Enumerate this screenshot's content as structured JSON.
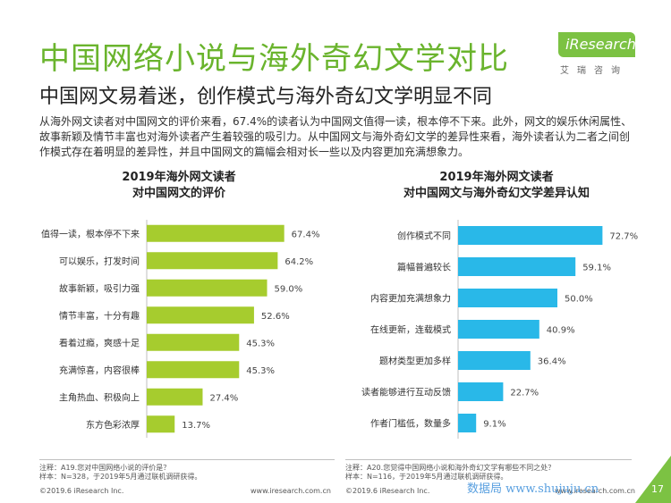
{
  "title": "中国网络小说与海外奇幻文学对比",
  "subtitle": "中国网文易着迷，创作模式与海外奇幻文学明显不同",
  "intro": "从海外网文读者对中国网文的评价来看，67.4%的读者认为中国网文值得一读，根本停不下来。此外，网文的娱乐休闲属性、故事新颖及情节丰富也对海外读者产生着较强的吸引力。从中国网文与海外奇幻文学的差异性来看，海外读者认为二者之间创作模式存在着明显的差异性，并且中国网文的篇幅会相对长一些以及内容更加充满想象力。",
  "logo": {
    "name": "iResearch",
    "cn": "艾瑞咨询"
  },
  "colors": {
    "title": "#6ab42d",
    "left_bars": "#a6cc2e",
    "right_bars": "#29b8e8"
  },
  "chart_data": [
    {
      "type": "bar",
      "orientation": "horizontal",
      "title": "2019年海外网文读者\n对中国网文的评价",
      "categories": [
        "值得一读，根本停不下来",
        "可以娱乐，打发时间",
        "故事新颖，吸引力强",
        "情节丰富，十分有趣",
        "看着过瘾，爽感十足",
        "充满惊喜，内容很棒",
        "主角热血、积极向上",
        "东方色彩浓厚"
      ],
      "values": [
        67.4,
        64.2,
        59.0,
        52.6,
        45.3,
        45.3,
        27.4,
        13.7
      ],
      "labels": [
        "67.4%",
        "64.2%",
        "59.0%",
        "52.6%",
        "45.3%",
        "45.3%",
        "27.4%",
        "13.7%"
      ],
      "xlim": [
        0,
        100
      ]
    },
    {
      "type": "bar",
      "orientation": "horizontal",
      "title": "2019年海外网文读者\n对中国网文与海外奇幻文学差异认知",
      "categories": [
        "创作模式不同",
        "篇幅普遍较长",
        "内容更加充满想象力",
        "在线更新，连载模式",
        "题材类型更加多样",
        "读者能够进行互动反馈",
        "作者门槛低，数量多"
      ],
      "values": [
        72.7,
        59.1,
        50.0,
        40.9,
        36.4,
        22.7,
        9.1
      ],
      "labels": [
        "72.7%",
        "59.1%",
        "50.0%",
        "40.9%",
        "36.4%",
        "22.7%",
        "9.1%"
      ],
      "xlim": [
        0,
        100
      ]
    }
  ],
  "notes": {
    "left": [
      "注释：A19.您对中国网络小说的评价是？",
      "样本：N=328，于2019年5月通过联机调研获得。"
    ],
    "right": [
      "注释：A20.您觉得中国网络小说和海外奇幻文学有哪些不同之处？",
      "样本：N=116，于2019年5月通过联机调研获得。"
    ]
  },
  "footer": {
    "left_copyright": "©2019.6 iResearch Inc.",
    "left_url": "www.iresearch.com.cn",
    "right_copyright": "©2019.6 iResearch Inc.",
    "right_url": "www.iresearch.com.cn",
    "page": "17",
    "watermark": "数据局 www.shujuju.cn"
  }
}
